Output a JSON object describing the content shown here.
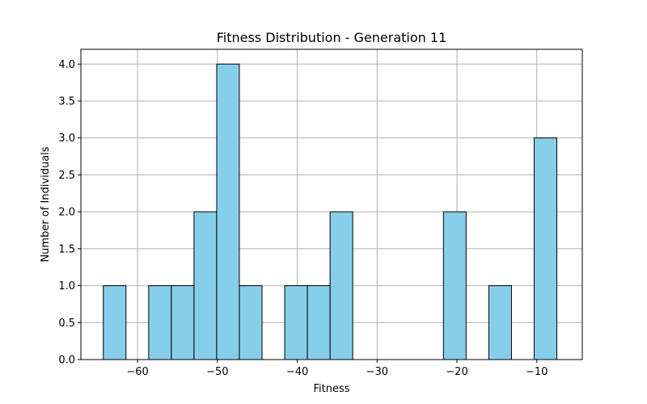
{
  "chart_data": {
    "type": "bar",
    "subtype": "histogram",
    "title": "Fitness Distribution - Generation 11",
    "xlabel": "Fitness",
    "ylabel": "Number of Individuals",
    "xlim": [
      -67.1,
      -4.3
    ],
    "ylim": [
      0,
      4.2
    ],
    "grid": true,
    "bar_color": "#87CEEB",
    "edge_color": "#000000",
    "bin_edges": [
      -64.29,
      -61.45,
      -58.61,
      -55.77,
      -52.93,
      -50.09,
      -47.25,
      -44.41,
      -41.57,
      -38.73,
      -35.89,
      -33.05,
      -30.21,
      -27.37,
      -24.53,
      -21.69,
      -18.85,
      -16.01,
      -13.17,
      -10.33,
      -7.49
    ],
    "counts": [
      1,
      0,
      1,
      1,
      2,
      4,
      1,
      0,
      1,
      1,
      2,
      0,
      0,
      0,
      0,
      2,
      0,
      1,
      0,
      3
    ],
    "x_ticks": [
      {
        "value": -60,
        "label": "−60"
      },
      {
        "value": -50,
        "label": "−50"
      },
      {
        "value": -40,
        "label": "−40"
      },
      {
        "value": -30,
        "label": "−30"
      },
      {
        "value": -20,
        "label": "−20"
      },
      {
        "value": -10,
        "label": "−10"
      }
    ],
    "y_ticks": [
      {
        "value": 0,
        "label": "0.0"
      },
      {
        "value": 0.5,
        "label": "0.5"
      },
      {
        "value": 1.0,
        "label": "1.0"
      },
      {
        "value": 1.5,
        "label": "1.5"
      },
      {
        "value": 2.0,
        "label": "2.0"
      },
      {
        "value": 2.5,
        "label": "2.5"
      },
      {
        "value": 3.0,
        "label": "3.0"
      },
      {
        "value": 3.5,
        "label": "3.5"
      },
      {
        "value": 4.0,
        "label": "4.0"
      }
    ]
  }
}
